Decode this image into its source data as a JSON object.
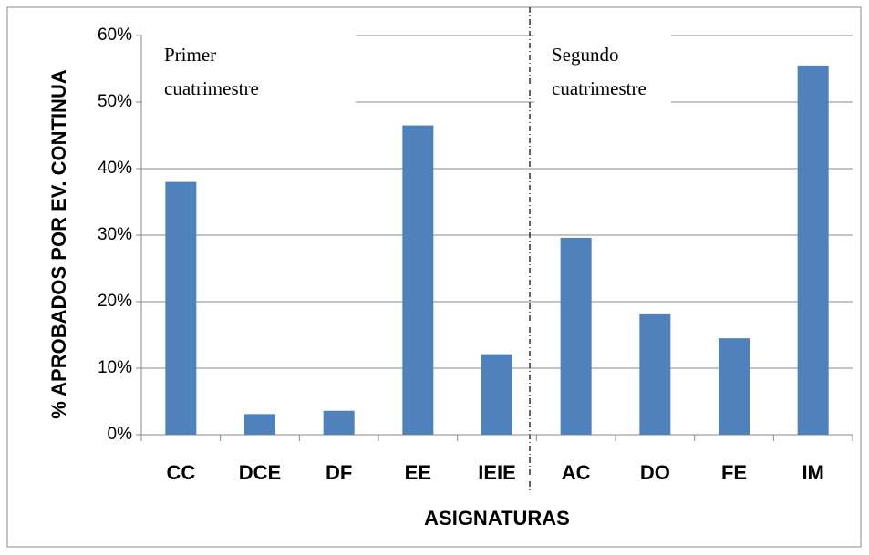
{
  "chart_data": {
    "type": "bar",
    "x_label": "ASIGNATURAS",
    "y_label": "% APROBADOS POR EV. CONTINUA",
    "categories": [
      "CC",
      "DCE",
      "DF",
      "EE",
      "IEIE",
      "AC",
      "DO",
      "FE",
      "IM"
    ],
    "values": [
      38,
      3.1,
      3.6,
      46.5,
      12.1,
      29.6,
      18.1,
      14.5,
      55.5
    ],
    "color": "#4f81bd",
    "ylim": [
      0,
      60
    ],
    "yticks": [
      {
        "value": 0,
        "label": "0%"
      },
      {
        "value": 10,
        "label": "10%"
      },
      {
        "value": 20,
        "label": "20%"
      },
      {
        "value": 30,
        "label": "30%"
      },
      {
        "value": 40,
        "label": "40%"
      },
      {
        "value": 50,
        "label": "50%"
      },
      {
        "value": 60,
        "label": "60%"
      }
    ],
    "grid": true,
    "annotations": [
      {
        "lines": [
          "Primer",
          "cuatrimestre"
        ]
      },
      {
        "lines": [
          "Segundo",
          "cuatrimestre"
        ]
      }
    ]
  }
}
